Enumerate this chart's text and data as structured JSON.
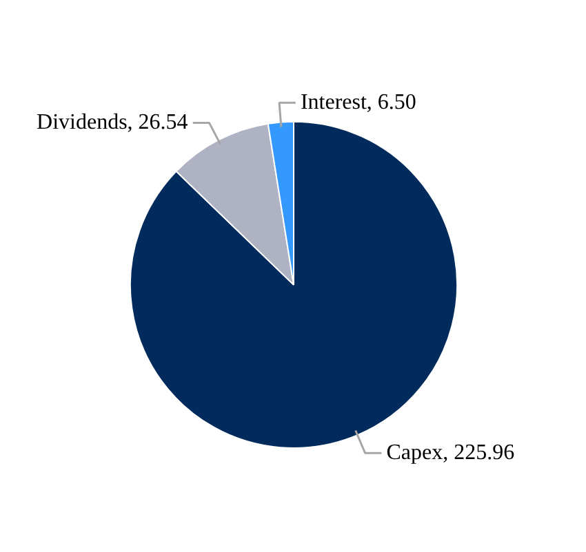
{
  "chart_data": {
    "type": "pie",
    "categories": [
      "Capex",
      "Dividends",
      "Interest"
    ],
    "value_labels": [
      "225.96",
      "26.54",
      "6.50"
    ],
    "values": [
      225.96,
      26.54,
      6.5
    ],
    "colors": [
      "#002b5c",
      "#aeb2c2",
      "#3399ff"
    ]
  }
}
